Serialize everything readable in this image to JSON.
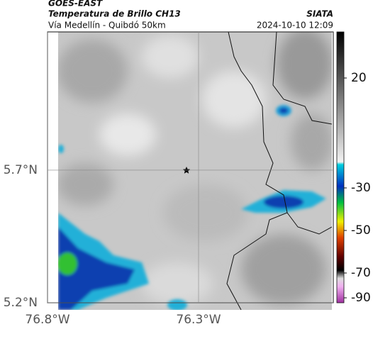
{
  "header": {
    "title": "GOES-EAST",
    "subtitle": "Temperatura de Brillo CH13",
    "source": "SIATA",
    "route": "Vía Medellín - Quibdó 50km",
    "timestamp": "2024-10-10 12:09"
  },
  "map": {
    "xlim": [
      -76.8,
      -75.854
    ],
    "ylim": [
      5.2,
      6.221
    ],
    "xticks": [
      {
        "value": -76.8,
        "label": "76.8°W"
      },
      {
        "value": -76.3,
        "label": "76.3°W"
      }
    ],
    "yticks": [
      {
        "value": 5.7,
        "label": "5.7°N"
      },
      {
        "value": 5.2,
        "label": "5.2°N"
      }
    ]
  },
  "colorbar": {
    "ticks": [
      20,
      -30,
      -50,
      -70,
      -90
    ]
  }
}
